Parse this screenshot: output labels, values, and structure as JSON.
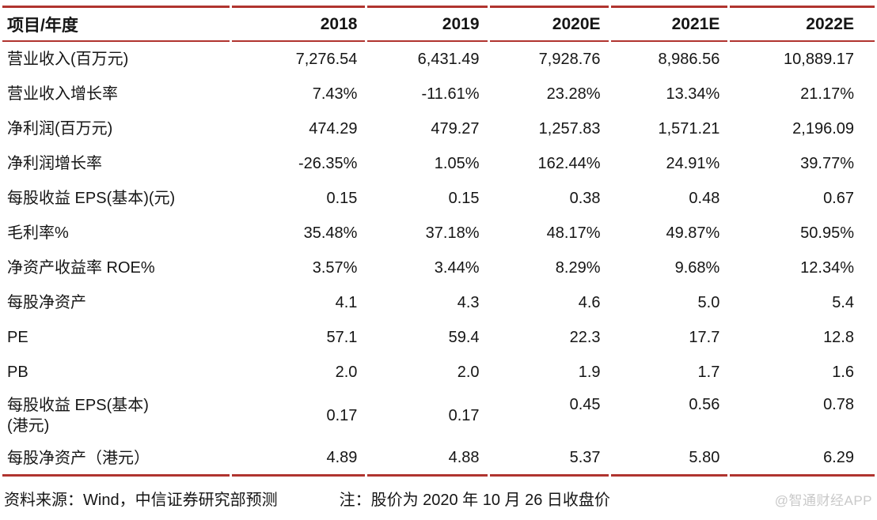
{
  "table": {
    "header": {
      "label_col": "项目/年度",
      "year_cols": [
        "2018",
        "2019",
        "2020E",
        "2021E",
        "2022E"
      ]
    },
    "rows": [
      {
        "label": "营业收入(百万元)",
        "values": [
          "7,276.54",
          "6,431.49",
          "7,928.76",
          "8,986.56",
          "10,889.17"
        ]
      },
      {
        "label": "营业收入增长率",
        "values": [
          "7.43%",
          "-11.61%",
          "23.28%",
          "13.34%",
          "21.17%"
        ]
      },
      {
        "label": "净利润(百万元)",
        "values": [
          "474.29",
          "479.27",
          "1,257.83",
          "1,571.21",
          "2,196.09"
        ]
      },
      {
        "label": "净利润增长率",
        "values": [
          "-26.35%",
          "1.05%",
          "162.44%",
          "24.91%",
          "39.77%"
        ]
      },
      {
        "label": "每股收益 EPS(基本)(元)",
        "values": [
          "0.15",
          "0.15",
          "0.38",
          "0.48",
          "0.67"
        ]
      },
      {
        "label": "毛利率%",
        "values": [
          "35.48%",
          "37.18%",
          "48.17%",
          "49.87%",
          "50.95%"
        ]
      },
      {
        "label": "净资产收益率 ROE%",
        "values": [
          "3.57%",
          "3.44%",
          "8.29%",
          "9.68%",
          "12.34%"
        ]
      },
      {
        "label": "每股净资产",
        "values": [
          "4.1",
          "4.3",
          "4.6",
          "5.0",
          "5.4"
        ]
      },
      {
        "label": "PE",
        "values": [
          "57.1",
          "59.4",
          "22.3",
          "17.7",
          "12.8"
        ]
      },
      {
        "label": "PB",
        "values": [
          "2.0",
          "2.0",
          "1.9",
          "1.7",
          "1.6"
        ]
      },
      {
        "label": "每股收益 EPS(基本)\n(港元)",
        "values": [
          "0.17",
          "0.17",
          "0.45",
          "0.56",
          "0.78"
        ]
      },
      {
        "label": "每股净资产（港元）",
        "values": [
          "4.89",
          "4.88",
          "5.37",
          "5.80",
          "6.29"
        ]
      }
    ]
  },
  "footer": {
    "source": "资料来源：Wind，中信证券研究部预测",
    "note": "注：股价为 2020 年 10 月 26 日收盘价",
    "watermark": "@智通财经APP"
  },
  "colors": {
    "accent_red": "#b0342f",
    "watermark_gray": "#c9c9c9",
    "text": "#151515"
  }
}
